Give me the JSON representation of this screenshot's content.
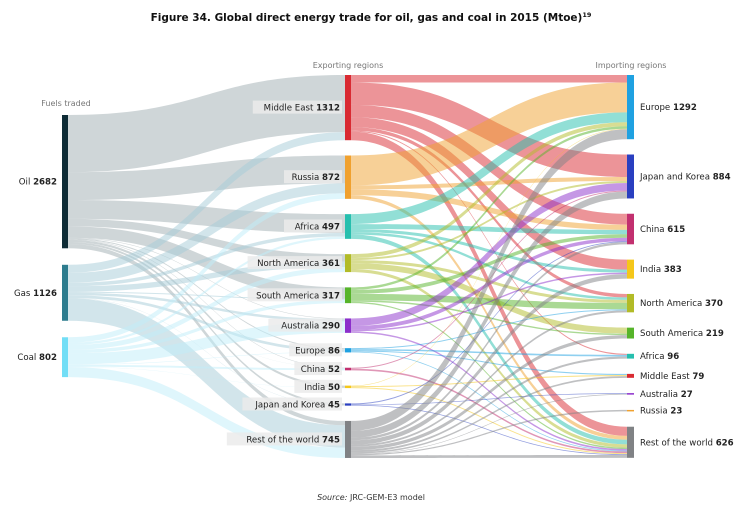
{
  "chart_data": {
    "type": "sankey",
    "title": "Figure 34. Global direct energy trade for oil, gas and coal in 2015 (Mtoe)",
    "title_footnote": "19",
    "source_label": "Source:",
    "source_text": "JRC-GEM-E3 model",
    "column_headers": {
      "fuels": "Fuels traded",
      "exporters": "Exporting regions",
      "importers": "Importing regions"
    },
    "fuels": [
      {
        "name": "Oil",
        "value": 2682,
        "color": "#0e2c36",
        "link_color": "#9fadb2"
      },
      {
        "name": "Gas",
        "value": 1126,
        "color": "#2d7c8e",
        "link_color": "#a6cbd7"
      },
      {
        "name": "Coal",
        "value": 802,
        "color": "#72def6",
        "link_color": "#bfeefa"
      }
    ],
    "exporters": [
      {
        "name": "Middle East",
        "value": 1312,
        "color": "#d92a32"
      },
      {
        "name": "Russia",
        "value": 872,
        "color": "#f0a12f"
      },
      {
        "name": "Africa",
        "value": 497,
        "color": "#26bfae"
      },
      {
        "name": "North America",
        "value": 361,
        "color": "#b2bb27"
      },
      {
        "name": "South America",
        "value": 317,
        "color": "#56b42a"
      },
      {
        "name": "Australia",
        "value": 290,
        "color": "#8c2fcb"
      },
      {
        "name": "Europe",
        "value": 86,
        "color": "#1fa1e1"
      },
      {
        "name": "China",
        "value": 52,
        "color": "#c2306f"
      },
      {
        "name": "India",
        "value": 50,
        "color": "#f5c71a"
      },
      {
        "name": "Japan and Korea",
        "value": 45,
        "color": "#2a3fc0"
      },
      {
        "name": "Rest of the world",
        "value": 745,
        "color": "#808285"
      }
    ],
    "importers": [
      {
        "name": "Europe",
        "value": 1292,
        "color": "#1fa1e1"
      },
      {
        "name": "Japan and Korea",
        "value": 884,
        "color": "#2a3fc0"
      },
      {
        "name": "China",
        "value": 615,
        "color": "#c2306f"
      },
      {
        "name": "India",
        "value": 383,
        "color": "#f5c71a"
      },
      {
        "name": "North America",
        "value": 370,
        "color": "#b2bb27"
      },
      {
        "name": "South America",
        "value": 219,
        "color": "#56b42a"
      },
      {
        "name": "Africa",
        "value": 96,
        "color": "#26bfae"
      },
      {
        "name": "Middle East",
        "value": 79,
        "color": "#d92a32"
      },
      {
        "name": "Australia",
        "value": 27,
        "color": "#8c2fcb"
      },
      {
        "name": "Russia",
        "value": 23,
        "color": "#f0a12f"
      },
      {
        "name": "Rest of the world",
        "value": 626,
        "color": "#808285"
      }
    ],
    "fuel_to_exporter_estimated": [
      [
        1150,
        560,
        380,
        150,
        230,
        10,
        20,
        10,
        45,
        40,
        87
      ],
      [
        162,
        200,
        70,
        110,
        20,
        50,
        56,
        2,
        0,
        5,
        451
      ],
      [
        0,
        112,
        47,
        101,
        67,
        230,
        10,
        40,
        5,
        0,
        207
      ]
    ],
    "exporter_to_importer_estimated": [
      [
        150,
        450,
        250,
        200,
        70,
        0,
        20,
        0,
        0,
        0,
        172
      ],
      [
        600,
        80,
        120,
        0,
        0,
        0,
        0,
        0,
        0,
        0,
        72
      ],
      [
        200,
        0,
        100,
        60,
        50,
        0,
        0,
        0,
        0,
        0,
        87
      ],
      [
        80,
        40,
        0,
        0,
        60,
        120,
        0,
        0,
        0,
        0,
        61
      ],
      [
        50,
        0,
        80,
        0,
        130,
        30,
        0,
        0,
        0,
        0,
        27
      ],
      [
        0,
        150,
        80,
        30,
        0,
        0,
        0,
        0,
        0,
        0,
        30
      ],
      [
        0,
        0,
        0,
        0,
        20,
        0,
        30,
        20,
        0,
        0,
        16
      ],
      [
        0,
        20,
        0,
        0,
        0,
        0,
        0,
        0,
        0,
        0,
        32
      ],
      [
        10,
        0,
        0,
        0,
        0,
        0,
        0,
        20,
        0,
        0,
        20
      ],
      [
        0,
        0,
        20,
        0,
        0,
        0,
        0,
        0,
        10,
        0,
        15
      ],
      [
        200,
        140,
        50,
        90,
        40,
        69,
        40,
        30,
        10,
        23,
        53
      ]
    ]
  }
}
